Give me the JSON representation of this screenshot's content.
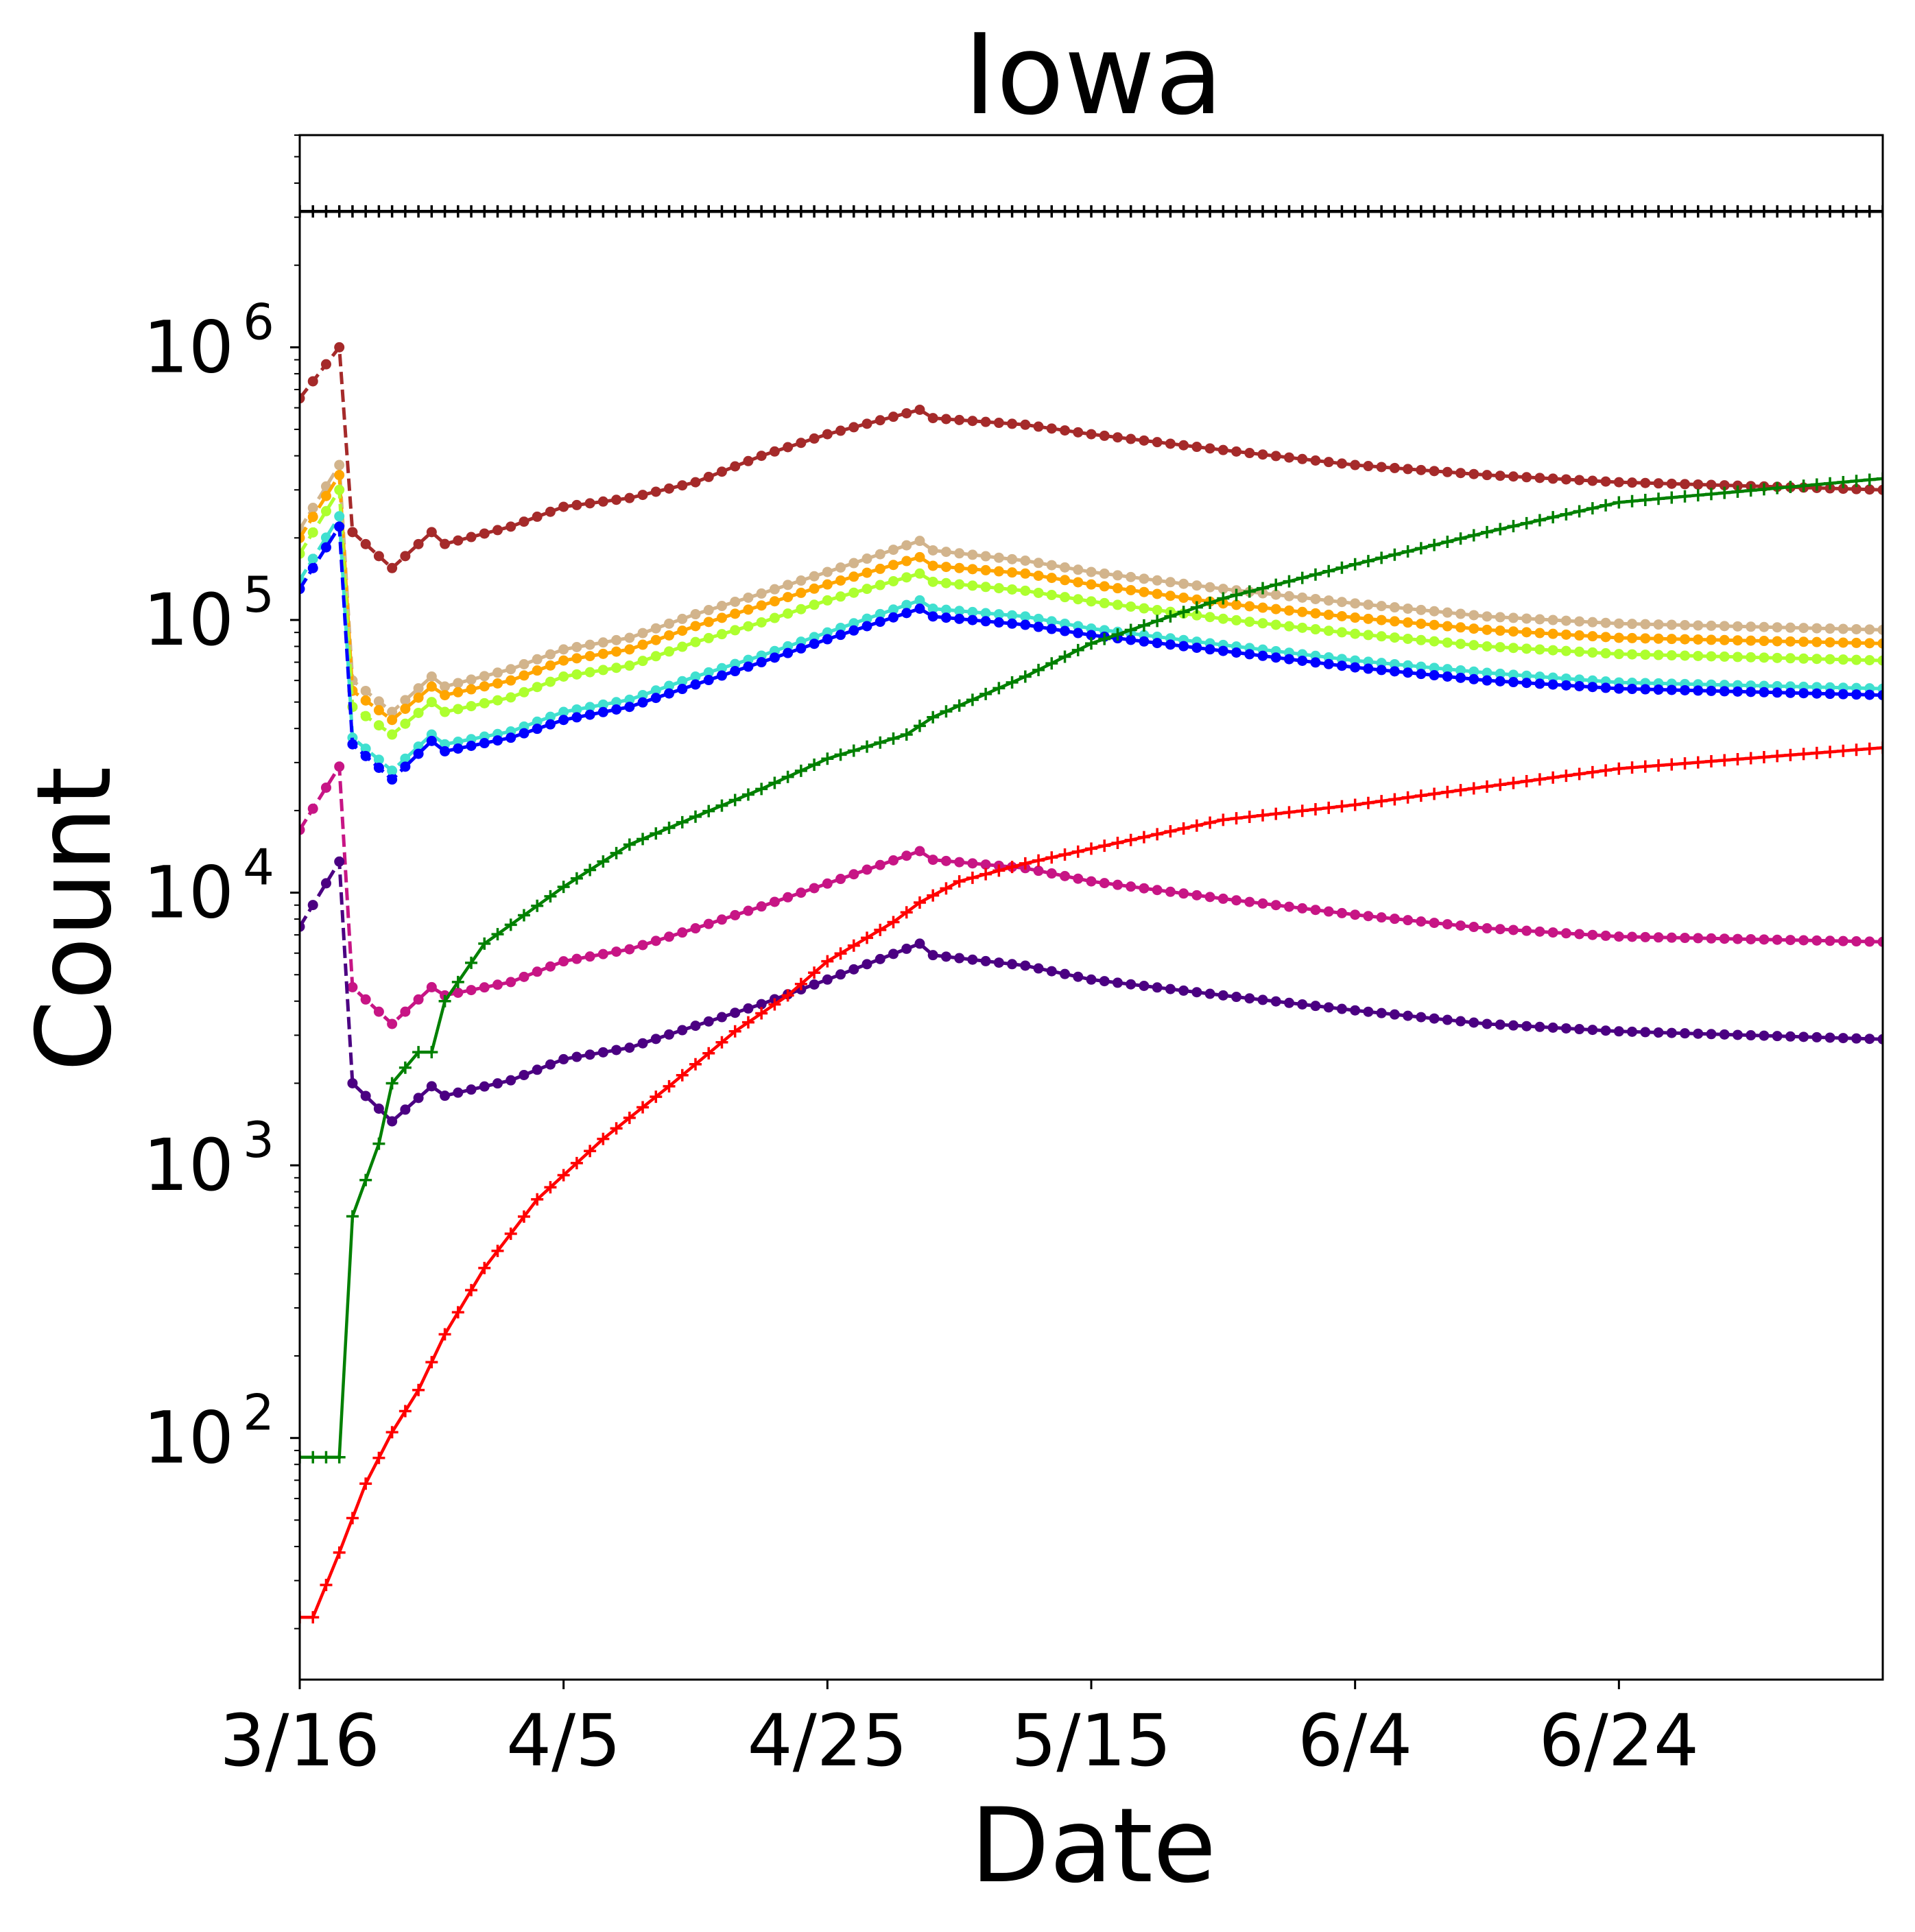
{
  "chart_data": {
    "type": "line",
    "title": "Iowa",
    "xlabel": "Date",
    "ylabel": "Count",
    "y_scale": "log",
    "ylim": [
      13,
      6000000
    ],
    "x_start_date": "2020-03-16",
    "x_end_date": "2020-07-14",
    "x_ticks": [
      "3/16",
      "4/5",
      "4/25",
      "5/15",
      "6/4",
      "6/24"
    ],
    "y_ticks": [
      {
        "base": "10",
        "exp": "2",
        "value": 100
      },
      {
        "base": "10",
        "exp": "3",
        "value": 1000
      },
      {
        "base": "10",
        "exp": "4",
        "value": 10000
      },
      {
        "base": "10",
        "exp": "5",
        "value": 100000
      },
      {
        "base": "10",
        "exp": "6",
        "value": 1000000
      }
    ],
    "legend": "none",
    "grid": false,
    "series": [
      {
        "color": "#000000",
        "linestyle": "solid",
        "marker": "plus",
        "points": [
          [
            "2020-03-16",
            3150000
          ],
          [
            "2020-07-14",
            3150000
          ]
        ]
      },
      {
        "color": "#a52a2a",
        "linestyle": "dashed-then-solid",
        "marker": "dot",
        "points": [
          [
            "2020-03-16",
            650000
          ],
          [
            "2020-03-19",
            1000000
          ],
          [
            "2020-03-20",
            210000
          ],
          [
            "2020-03-23",
            155000
          ],
          [
            "2020-03-26",
            210000
          ],
          [
            "2020-03-27",
            190000
          ],
          [
            "2020-04-01",
            220000
          ],
          [
            "2020-04-05",
            260000
          ],
          [
            "2020-04-10",
            280000
          ],
          [
            "2020-04-15",
            320000
          ],
          [
            "2020-04-20",
            400000
          ],
          [
            "2020-04-25",
            480000
          ],
          [
            "2020-05-02",
            590000
          ],
          [
            "2020-05-03",
            550000
          ],
          [
            "2020-05-10",
            520000
          ],
          [
            "2020-05-15",
            480000
          ],
          [
            "2020-05-25",
            420000
          ],
          [
            "2020-06-04",
            370000
          ],
          [
            "2020-06-14",
            340000
          ],
          [
            "2020-06-24",
            320000
          ],
          [
            "2020-07-14",
            300000
          ]
        ]
      },
      {
        "color": "#d2b48c",
        "linestyle": "dashed-then-solid",
        "marker": "dot",
        "points": [
          [
            "2020-03-16",
            215000
          ],
          [
            "2020-03-19",
            370000
          ],
          [
            "2020-03-20",
            60000
          ],
          [
            "2020-03-23",
            46000
          ],
          [
            "2020-03-26",
            62000
          ],
          [
            "2020-03-27",
            57000
          ],
          [
            "2020-04-01",
            66000
          ],
          [
            "2020-04-05",
            78000
          ],
          [
            "2020-04-10",
            86000
          ],
          [
            "2020-04-15",
            105000
          ],
          [
            "2020-04-20",
            125000
          ],
          [
            "2020-04-25",
            150000
          ],
          [
            "2020-05-02",
            195000
          ],
          [
            "2020-05-03",
            180000
          ],
          [
            "2020-05-10",
            165000
          ],
          [
            "2020-05-15",
            150000
          ],
          [
            "2020-05-25",
            130000
          ],
          [
            "2020-06-04",
            115000
          ],
          [
            "2020-06-14",
            103000
          ],
          [
            "2020-06-24",
            97000
          ],
          [
            "2020-07-14",
            92000
          ]
        ]
      },
      {
        "color": "#ffa500",
        "linestyle": "dashed-then-solid",
        "marker": "dot",
        "points": [
          [
            "2020-03-16",
            200000
          ],
          [
            "2020-03-19",
            340000
          ],
          [
            "2020-03-20",
            55000
          ],
          [
            "2020-03-23",
            43000
          ],
          [
            "2020-03-26",
            57000
          ],
          [
            "2020-03-27",
            53000
          ],
          [
            "2020-04-01",
            60000
          ],
          [
            "2020-04-05",
            71000
          ],
          [
            "2020-04-10",
            78000
          ],
          [
            "2020-04-15",
            95000
          ],
          [
            "2020-04-20",
            113000
          ],
          [
            "2020-04-25",
            135000
          ],
          [
            "2020-05-02",
            170000
          ],
          [
            "2020-05-03",
            158000
          ],
          [
            "2020-05-10",
            148000
          ],
          [
            "2020-05-15",
            135000
          ],
          [
            "2020-05-25",
            115000
          ],
          [
            "2020-06-04",
            102000
          ],
          [
            "2020-06-14",
            92000
          ],
          [
            "2020-06-24",
            86000
          ],
          [
            "2020-07-14",
            82000
          ]
        ]
      },
      {
        "color": "#adff2f",
        "linestyle": "dashed-then-solid",
        "marker": "dot",
        "points": [
          [
            "2020-03-16",
            175000
          ],
          [
            "2020-03-19",
            300000
          ],
          [
            "2020-03-20",
            48000
          ],
          [
            "2020-03-23",
            38000
          ],
          [
            "2020-03-26",
            50000
          ],
          [
            "2020-03-27",
            46000
          ],
          [
            "2020-04-01",
            52000
          ],
          [
            "2020-04-05",
            62000
          ],
          [
            "2020-04-10",
            68000
          ],
          [
            "2020-04-15",
            83000
          ],
          [
            "2020-04-20",
            98000
          ],
          [
            "2020-04-25",
            118000
          ],
          [
            "2020-05-02",
            148000
          ],
          [
            "2020-05-03",
            138000
          ],
          [
            "2020-05-10",
            128000
          ],
          [
            "2020-05-15",
            117000
          ],
          [
            "2020-05-25",
            101000
          ],
          [
            "2020-06-04",
            89000
          ],
          [
            "2020-06-14",
            80000
          ],
          [
            "2020-06-24",
            75000
          ],
          [
            "2020-07-14",
            71000
          ]
        ]
      },
      {
        "color": "#40e0d0",
        "linestyle": "dashed-then-solid",
        "marker": "dot",
        "points": [
          [
            "2020-03-16",
            140000
          ],
          [
            "2020-03-19",
            240000
          ],
          [
            "2020-03-20",
            37000
          ],
          [
            "2020-03-23",
            28000
          ],
          [
            "2020-03-26",
            38000
          ],
          [
            "2020-03-27",
            35000
          ],
          [
            "2020-04-01",
            39000
          ],
          [
            "2020-04-05",
            46000
          ],
          [
            "2020-04-10",
            51000
          ],
          [
            "2020-04-15",
            62000
          ],
          [
            "2020-04-20",
            74000
          ],
          [
            "2020-04-25",
            90000
          ],
          [
            "2020-05-02",
            118000
          ],
          [
            "2020-05-03",
            110000
          ],
          [
            "2020-05-10",
            103000
          ],
          [
            "2020-05-15",
            93000
          ],
          [
            "2020-05-25",
            81000
          ],
          [
            "2020-06-04",
            71000
          ],
          [
            "2020-06-14",
            64000
          ],
          [
            "2020-06-24",
            59000
          ],
          [
            "2020-07-14",
            56000
          ]
        ]
      },
      {
        "color": "#0000ff",
        "linestyle": "dashed-then-solid",
        "marker": "dot",
        "points": [
          [
            "2020-03-16",
            130000
          ],
          [
            "2020-03-19",
            220000
          ],
          [
            "2020-03-20",
            35000
          ],
          [
            "2020-03-23",
            26000
          ],
          [
            "2020-03-26",
            36000
          ],
          [
            "2020-03-27",
            33000
          ],
          [
            "2020-04-01",
            37000
          ],
          [
            "2020-04-05",
            43000
          ],
          [
            "2020-04-10",
            48000
          ],
          [
            "2020-04-15",
            58000
          ],
          [
            "2020-04-20",
            70000
          ],
          [
            "2020-04-25",
            85000
          ],
          [
            "2020-05-02",
            110000
          ],
          [
            "2020-05-03",
            103000
          ],
          [
            "2020-05-10",
            96000
          ],
          [
            "2020-05-15",
            88000
          ],
          [
            "2020-05-25",
            77000
          ],
          [
            "2020-06-04",
            67000
          ],
          [
            "2020-06-14",
            60000
          ],
          [
            "2020-06-24",
            56000
          ],
          [
            "2020-07-14",
            53000
          ]
        ]
      },
      {
        "color": "#c71585",
        "linestyle": "dashed-then-solid",
        "marker": "dot",
        "points": [
          [
            "2020-03-16",
            17000
          ],
          [
            "2020-03-19",
            29000
          ],
          [
            "2020-03-20",
            4500
          ],
          [
            "2020-03-23",
            3300
          ],
          [
            "2020-03-26",
            4500
          ],
          [
            "2020-03-27",
            4200
          ],
          [
            "2020-04-01",
            4700
          ],
          [
            "2020-04-05",
            5600
          ],
          [
            "2020-04-10",
            6200
          ],
          [
            "2020-04-15",
            7400
          ],
          [
            "2020-04-20",
            8900
          ],
          [
            "2020-04-25",
            10800
          ],
          [
            "2020-05-02",
            14200
          ],
          [
            "2020-05-03",
            13200
          ],
          [
            "2020-05-10",
            12300
          ],
          [
            "2020-05-15",
            11000
          ],
          [
            "2020-05-25",
            9500
          ],
          [
            "2020-06-04",
            8300
          ],
          [
            "2020-06-14",
            7400
          ],
          [
            "2020-06-24",
            6900
          ],
          [
            "2020-07-14",
            6600
          ]
        ]
      },
      {
        "color": "#4b0082",
        "linestyle": "dashed-then-solid",
        "marker": "dot",
        "points": [
          [
            "2020-03-16",
            7500
          ],
          [
            "2020-03-19",
            13000
          ],
          [
            "2020-03-20",
            2000
          ],
          [
            "2020-03-23",
            1450
          ],
          [
            "2020-03-26",
            1950
          ],
          [
            "2020-03-27",
            1800
          ],
          [
            "2020-04-01",
            2050
          ],
          [
            "2020-04-05",
            2450
          ],
          [
            "2020-04-10",
            2700
          ],
          [
            "2020-04-15",
            3250
          ],
          [
            "2020-04-20",
            3900
          ],
          [
            "2020-04-25",
            4800
          ],
          [
            "2020-05-02",
            6500
          ],
          [
            "2020-05-03",
            5900
          ],
          [
            "2020-05-10",
            5400
          ],
          [
            "2020-05-15",
            4800
          ],
          [
            "2020-05-25",
            4200
          ],
          [
            "2020-06-04",
            3700
          ],
          [
            "2020-06-14",
            3300
          ],
          [
            "2020-06-24",
            3100
          ],
          [
            "2020-07-14",
            2900
          ]
        ]
      },
      {
        "color": "#008000",
        "linestyle": "solid",
        "marker": "plus",
        "points": [
          [
            "2020-03-16",
            85
          ],
          [
            "2020-03-19",
            85
          ],
          [
            "2020-03-20",
            650
          ],
          [
            "2020-03-22",
            1200
          ],
          [
            "2020-03-23",
            2000
          ],
          [
            "2020-03-25",
            2600
          ],
          [
            "2020-03-26",
            2600
          ],
          [
            "2020-03-27",
            4000
          ],
          [
            "2020-03-30",
            6500
          ],
          [
            "2020-04-05",
            10500
          ],
          [
            "2020-04-10",
            15000
          ],
          [
            "2020-04-15",
            19000
          ],
          [
            "2020-04-20",
            24000
          ],
          [
            "2020-04-25",
            31000
          ],
          [
            "2020-05-01",
            38000
          ],
          [
            "2020-05-03",
            44000
          ],
          [
            "2020-05-10",
            62000
          ],
          [
            "2020-05-15",
            82000
          ],
          [
            "2020-05-25",
            120000
          ],
          [
            "2020-06-04",
            160000
          ],
          [
            "2020-06-14",
            210000
          ],
          [
            "2020-06-24",
            270000
          ],
          [
            "2020-07-14",
            330000
          ]
        ]
      },
      {
        "color": "#ff0000",
        "linestyle": "solid",
        "marker": "plus",
        "points": [
          [
            "2020-03-16",
            22
          ],
          [
            "2020-03-17",
            22
          ],
          [
            "2020-03-19",
            38
          ],
          [
            "2020-03-21",
            68
          ],
          [
            "2020-03-23",
            105
          ],
          [
            "2020-03-25",
            150
          ],
          [
            "2020-03-27",
            240
          ],
          [
            "2020-03-30",
            420
          ],
          [
            "2020-04-03",
            750
          ],
          [
            "2020-04-08",
            1250
          ],
          [
            "2020-04-13",
            1950
          ],
          [
            "2020-04-18",
            3100
          ],
          [
            "2020-04-22",
            4200
          ],
          [
            "2020-04-25",
            5600
          ],
          [
            "2020-04-30",
            7800
          ],
          [
            "2020-05-02",
            9200
          ],
          [
            "2020-05-05",
            11000
          ],
          [
            "2020-05-10",
            12800
          ],
          [
            "2020-05-15",
            14500
          ],
          [
            "2020-05-25",
            18500
          ],
          [
            "2020-06-04",
            21000
          ],
          [
            "2020-06-14",
            24500
          ],
          [
            "2020-06-24",
            28500
          ],
          [
            "2020-07-14",
            34000
          ]
        ]
      }
    ]
  }
}
